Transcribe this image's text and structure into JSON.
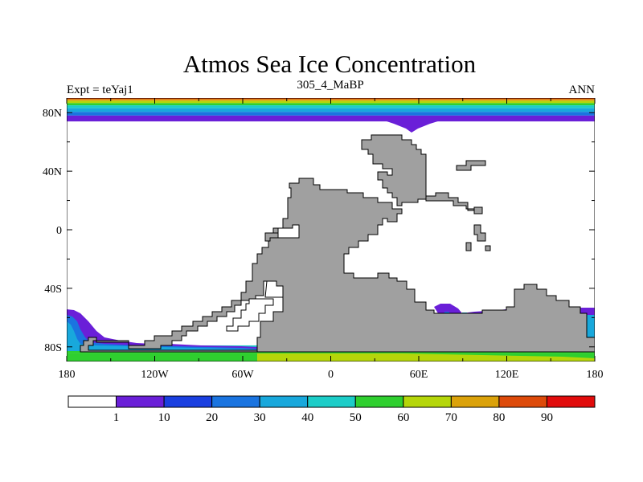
{
  "title": "Atmos Sea Ice Concentration",
  "left_label": "Expt = teYaj1",
  "center_label": "305_4_MaBP",
  "right_label": "ANN",
  "colors": {
    "land": "#a0a0a0",
    "ocean": "#ffffff",
    "outline": "#000000"
  },
  "chart_data": {
    "type": "heatmap",
    "title": "Atmos Sea Ice Concentration",
    "x_axis": {
      "range": [
        -180,
        180
      ],
      "ticks": [
        {
          "value": -180,
          "label": "180"
        },
        {
          "value": -120,
          "label": "120W"
        },
        {
          "value": -60,
          "label": "60W"
        },
        {
          "value": 0,
          "label": "0"
        },
        {
          "value": 60,
          "label": "60E"
        },
        {
          "value": 120,
          "label": "120E"
        },
        {
          "value": 180,
          "label": "180"
        }
      ]
    },
    "y_axis": {
      "range": [
        -90,
        90
      ],
      "ticks": [
        {
          "value": 80,
          "label": "80N"
        },
        {
          "value": 40,
          "label": "40N"
        },
        {
          "value": 0,
          "label": "0"
        },
        {
          "value": -40,
          "label": "40S"
        },
        {
          "value": -80,
          "label": "80S"
        }
      ]
    },
    "colorbar": {
      "levels": [
        "1",
        "10",
        "20",
        "30",
        "40",
        "50",
        "60",
        "70",
        "80",
        "90"
      ],
      "colors": [
        "#ffffff",
        "#6a1fd8",
        "#1a3fe0",
        "#1a74e0",
        "#18a8dc",
        "#1ccdc8",
        "#2fcf2f",
        "#b5d60a",
        "#dba20a",
        "#dd4a0a",
        "#e10c0c"
      ]
    },
    "north_ice_bands": [
      {
        "lat_top": 90,
        "lat_bottom": 89,
        "color": "#dd4a0a"
      },
      {
        "lat_top": 89,
        "lat_bottom": 88,
        "color": "#dba20a"
      },
      {
        "lat_top": 88,
        "lat_bottom": 86.5,
        "color": "#b5d60a"
      },
      {
        "lat_top": 86.5,
        "lat_bottom": 85,
        "color": "#2fcf2f"
      },
      {
        "lat_top": 85,
        "lat_bottom": 83,
        "color": "#1ccdc8"
      },
      {
        "lat_top": 83,
        "lat_bottom": 80.5,
        "color": "#18a8dc"
      },
      {
        "lat_top": 80.5,
        "lat_bottom": 78,
        "color": "#1a74e0"
      },
      {
        "lat_top": 78,
        "lat_bottom": 74,
        "color": "#6a1fd8"
      }
    ],
    "south_ice_bands": [
      {
        "lat_top": -79,
        "lat_bottom": -81,
        "color": "#1ccdc8"
      },
      {
        "lat_top": -81,
        "lat_bottom": -84,
        "color": "#2fcf2f"
      },
      {
        "lat_top": -84,
        "lat_bottom": -90,
        "color": "#2fcf2f"
      }
    ]
  }
}
